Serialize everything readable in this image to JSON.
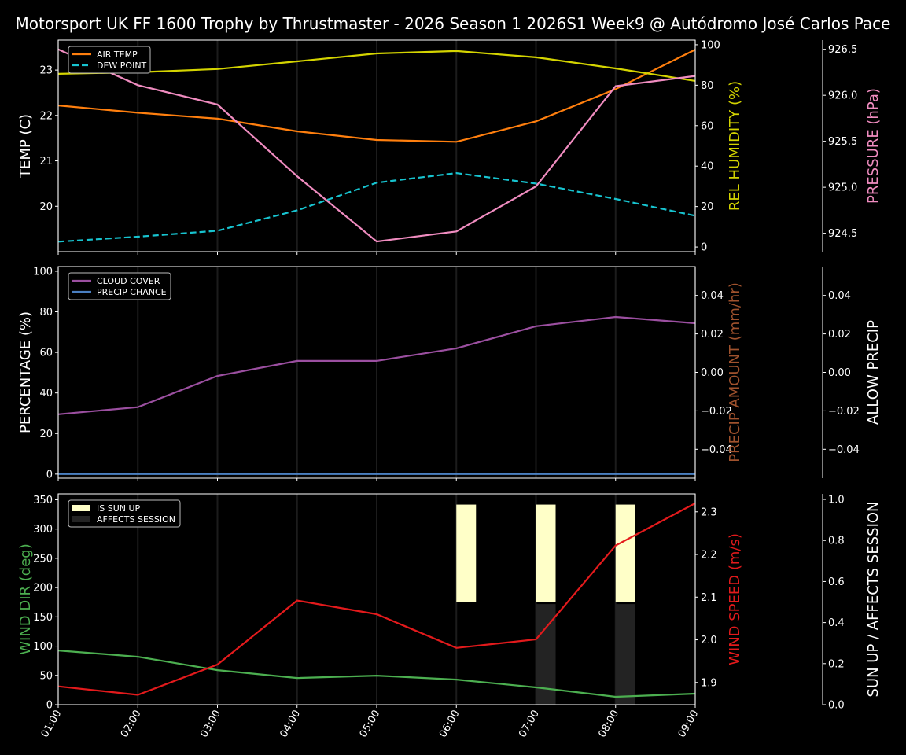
{
  "chart_data": {
    "type": "line",
    "title": "Motorsport UK FF 1600 Trophy by Thrustmaster - 2026 Season 1 2026S1 Week9 @ Autódromo José Carlos Pace",
    "x": [
      "01:00",
      "02:00",
      "03:00",
      "04:00",
      "05:00",
      "06:00",
      "07:00",
      "08:00",
      "09:00"
    ],
    "grid": "vertical",
    "panels": [
      {
        "axes": [
          {
            "side": "left",
            "label": "TEMP (C)",
            "color": "#ffffff",
            "ylim": [
              19.0,
              23.66
            ],
            "ticks": [
              "20",
              "21",
              "22",
              "23"
            ]
          },
          {
            "side": "right",
            "label": "REL HUMIDITY (%)",
            "color": "#d4d400",
            "ylim": [
              -2.3,
              102.3
            ],
            "ticks": [
              "0",
              "20",
              "40",
              "60",
              "80",
              "100"
            ]
          },
          {
            "side": "far-right",
            "label": "PRESSURE (hPa)",
            "color": "#f08cc0",
            "ylim": [
              924.3,
              926.6
            ],
            "ticks": [
              "924.5",
              "925.0",
              "925.5",
              "926.0",
              "926.5"
            ]
          }
        ],
        "legend": {
          "placement": "top-left",
          "entries": [
            "AIR TEMP",
            "DEW POINT"
          ]
        },
        "series": [
          {
            "name": "AIR TEMP",
            "axis": 0,
            "color": "#ff7f0e",
            "dash": false,
            "values": [
              22.22,
              22.06,
              21.93,
              21.65,
              21.46,
              21.42,
              21.87,
              22.58,
              23.45
            ]
          },
          {
            "name": "DEW POINT",
            "axis": 0,
            "color": "#17c3cf",
            "dash": true,
            "values": [
              19.22,
              19.33,
              19.46,
              19.91,
              20.52,
              20.73,
              20.5,
              20.16,
              19.79
            ]
          },
          {
            "axis": 1,
            "color": "#d4d400",
            "dash": false,
            "values": [
              85.6,
              86.4,
              88.0,
              91.8,
              95.7,
              96.9,
              93.8,
              88.3,
              82.1
            ]
          },
          {
            "axis": 2,
            "color": "#f08cc0",
            "dash": false,
            "values": [
              926.5,
              926.11,
              925.9,
              925.12,
              924.41,
              924.52,
              925.01,
              926.1,
              926.21
            ]
          }
        ]
      },
      {
        "axes": [
          {
            "side": "left",
            "label": "PERCENTAGE (%)",
            "color": "#ffffff",
            "ylim": [
              -2.0,
              102.3
            ],
            "ticks": [
              "0",
              "20",
              "40",
              "60",
              "80",
              "100"
            ]
          },
          {
            "side": "right",
            "label": "PRECIP AMOUNT (mm/hr)",
            "color": "#a0522d",
            "ylim": [
              -0.055,
              0.055
            ],
            "ticks": [
              "−0.04",
              "−0.02",
              "0.00",
              "0.02",
              "0.04"
            ]
          },
          {
            "side": "far-right",
            "label": "ALLOW PRECIP",
            "color": "#ffffff",
            "ylim": [
              -0.055,
              0.055
            ],
            "ticks": [
              "−0.04",
              "−0.02",
              "0.00",
              "0.02",
              "0.04"
            ]
          }
        ],
        "legend": {
          "placement": "top-left",
          "entries": [
            "CLOUD COVER",
            "PRECIP CHANCE"
          ]
        },
        "series": [
          {
            "name": "CLOUD COVER",
            "axis": 0,
            "color": "#9b4fa0",
            "dash": false,
            "values": [
              29.5,
              33.0,
              48.4,
              55.8,
              55.8,
              62.0,
              72.9,
              77.5,
              74.4
            ]
          },
          {
            "name": "PRECIP CHANCE",
            "axis": 0,
            "color": "#4a7fc1",
            "dash": false,
            "values": [
              0,
              0,
              0,
              0,
              0,
              0,
              0,
              0,
              0
            ]
          }
        ]
      },
      {
        "axes": [
          {
            "side": "left",
            "label": "WIND DIR (deg)",
            "color": "#4caf50",
            "ylim": [
              0,
              360
            ],
            "ticks": [
              "0",
              "50",
              "100",
              "150",
              "200",
              "250",
              "300",
              "350"
            ]
          },
          {
            "side": "right",
            "label": "WIND SPEED (m/s)",
            "color": "#e31a1c",
            "ylim": [
              1.848,
              2.342
            ],
            "ticks": [
              "1.9",
              "2.0",
              "2.1",
              "2.2",
              "2.3"
            ]
          },
          {
            "side": "far-right",
            "label": "SUN UP / AFFECTS SESSION",
            "color": "#ffffff",
            "ylim": [
              0,
              1.027
            ],
            "ticks": [
              "0.0",
              "0.2",
              "0.4",
              "0.6",
              "0.8",
              "1.0"
            ]
          }
        ],
        "legend": {
          "placement": "top-left",
          "entries": [
            "IS SUN UP",
            "AFFECTS SESSION"
          ]
        },
        "bars": [
          {
            "name": "IS SUN UP",
            "axis": 2,
            "color": "#ffffc8",
            "values": [
              0,
              0,
              0,
              0,
              0,
              1,
              1,
              1,
              0
            ]
          },
          {
            "name": "AFFECTS SESSION",
            "axis": 2,
            "color": "#232323",
            "values": [
              0,
              0,
              0,
              0,
              0,
              0,
              1,
              1,
              0
            ]
          }
        ],
        "series": [
          {
            "axis": 0,
            "color": "#4caf50",
            "dash": false,
            "values": [
              92.5,
              81.8,
              59.0,
              45.6,
              49.6,
              42.9,
              29.5,
              13.4,
              18.8
            ]
          },
          {
            "axis": 1,
            "color": "#e31a1c",
            "dash": false,
            "values": [
              1.891,
              1.871,
              1.942,
              2.092,
              2.06,
              1.981,
              2.001,
              2.221,
              2.32
            ]
          }
        ]
      }
    ]
  }
}
